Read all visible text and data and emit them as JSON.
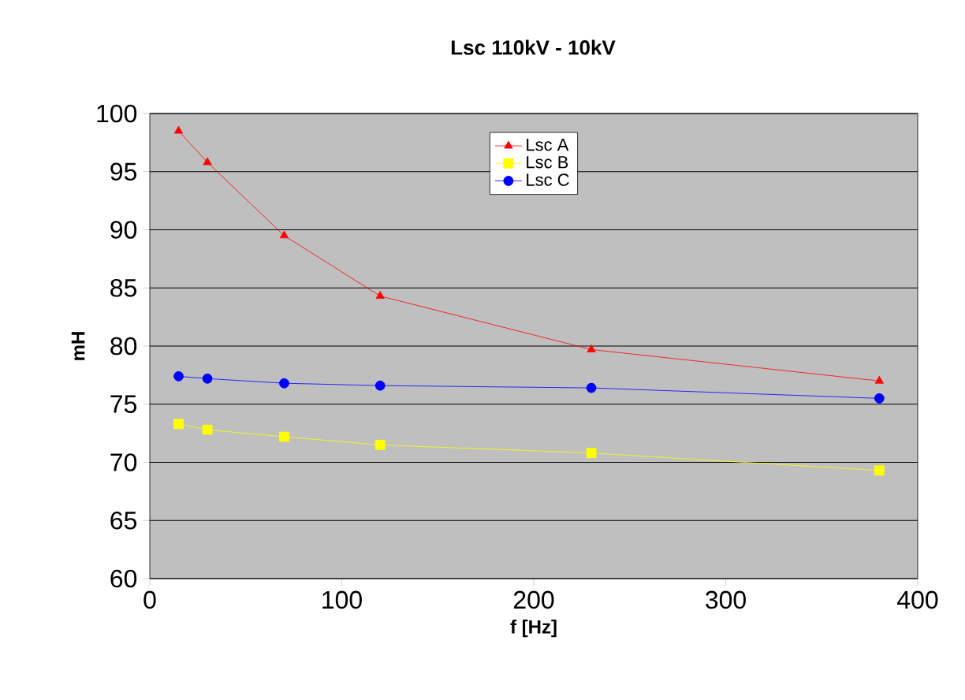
{
  "chart_data": {
    "type": "line",
    "title": "Lsc 110kV - 10kV",
    "xlabel": "f [Hz]",
    "ylabel": "mH",
    "x": [
      15,
      30,
      70,
      120,
      230,
      380
    ],
    "series": [
      {
        "name": "Lsc A",
        "color": "#ff0000",
        "marker": "triangle",
        "values": [
          98.5,
          95.8,
          89.5,
          84.3,
          79.7,
          77.0
        ]
      },
      {
        "name": "Lsc B",
        "color": "#ffff00",
        "marker": "square",
        "values": [
          73.3,
          72.8,
          72.2,
          71.5,
          70.8,
          69.3
        ]
      },
      {
        "name": "Lsc C",
        "color": "#0000ff",
        "marker": "circle",
        "values": [
          77.4,
          77.2,
          76.8,
          76.6,
          76.4,
          75.5
        ]
      }
    ],
    "xlim": [
      0,
      400
    ],
    "xticks": [
      0,
      100,
      200,
      300,
      400
    ],
    "ylim": [
      60,
      100
    ],
    "yticks": [
      60,
      65,
      70,
      75,
      80,
      85,
      90,
      95,
      100
    ],
    "grid": "y",
    "legend": "top"
  }
}
